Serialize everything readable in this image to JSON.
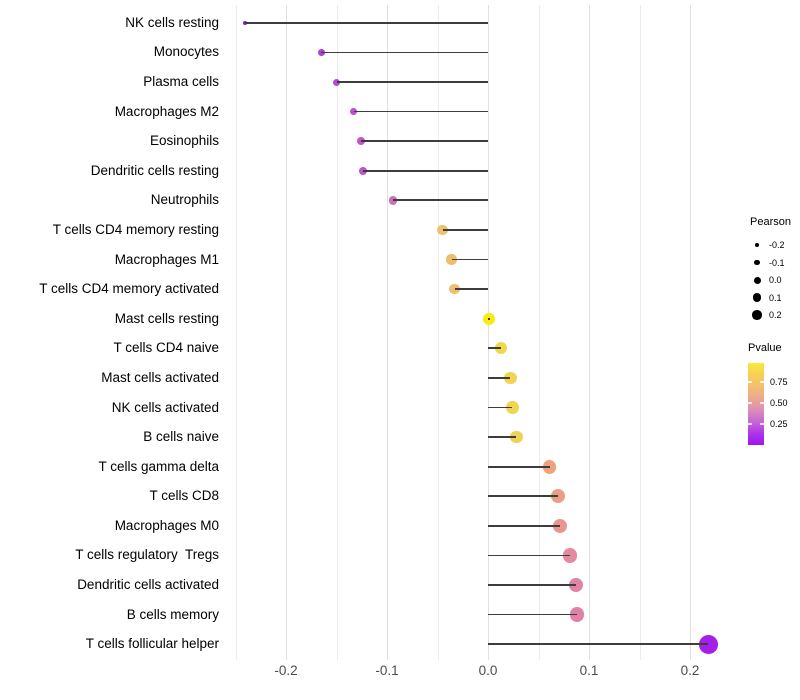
{
  "chart_data": {
    "type": "scatter",
    "variant": "lollipop",
    "title": "",
    "xlabel": "",
    "ylabel": "",
    "xlim": [
      -0.263,
      0.242
    ],
    "x_ticks": [
      -0.2,
      -0.1,
      0.0,
      0.1,
      0.2
    ],
    "x_tick_labels": [
      "-0.2",
      "-0.1",
      "0.0",
      "0.1",
      "0.2"
    ],
    "grid": "vertical-only",
    "minor_grid_values": [
      -0.25,
      -0.15,
      -0.05,
      0.05,
      0.15
    ],
    "legend_position": "right",
    "points": [
      {
        "category": "NK cells resting",
        "pearson": -0.241,
        "color": "#8c12e9"
      },
      {
        "category": "Monocytes",
        "pearson": -0.165,
        "color": "#b242d5"
      },
      {
        "category": "Plasma cells",
        "pearson": -0.15,
        "color": "#b748d2"
      },
      {
        "category": "Macrophages M2",
        "pearson": -0.133,
        "color": "#bc50ce"
      },
      {
        "category": "Eosinophils",
        "pearson": -0.126,
        "color": "#c158ca"
      },
      {
        "category": "Dendritic cells resting",
        "pearson": -0.124,
        "color": "#c056cb"
      },
      {
        "category": "Neutrophils",
        "pearson": -0.094,
        "color": "#cb70bb"
      },
      {
        "category": "T cells CD4 memory resting",
        "pearson": -0.045,
        "color": "#eec06f"
      },
      {
        "category": "Macrophages M1",
        "pearson": -0.036,
        "color": "#edbd6c"
      },
      {
        "category": "T cells CD4 memory activated",
        "pearson": -0.033,
        "color": "#eebf6e"
      },
      {
        "category": "Mast cells resting",
        "pearson": 0.001,
        "color": "#f8ec13"
      },
      {
        "category": "T cells CD4 naive",
        "pearson": 0.013,
        "color": "#f0d74b"
      },
      {
        "category": "Mast cells activated",
        "pearson": 0.022,
        "color": "#f0d54e"
      },
      {
        "category": "NK cells activated",
        "pearson": 0.024,
        "color": "#efd551"
      },
      {
        "category": "B cells naive",
        "pearson": 0.028,
        "color": "#eed254"
      },
      {
        "category": "T cells gamma delta",
        "pearson": 0.061,
        "color": "#eda47d"
      },
      {
        "category": "T cells CD8",
        "pearson": 0.069,
        "color": "#eb9d85"
      },
      {
        "category": "Macrophages M0",
        "pearson": 0.071,
        "color": "#e9968e"
      },
      {
        "category": "T cells regulatory  Tregs",
        "pearson": 0.081,
        "color": "#e48a9e"
      },
      {
        "category": "Dendritic cells activated",
        "pearson": 0.087,
        "color": "#e183a3"
      },
      {
        "category": "B cells memory",
        "pearson": 0.088,
        "color": "#e081a5"
      },
      {
        "category": "T cells follicular helper",
        "pearson": 0.218,
        "color": "#a41fe9"
      }
    ]
  },
  "legend": {
    "pearson": {
      "title": "Pearson",
      "size_labels": [
        "-0.2",
        "-0.1",
        "0.0",
        "0.1",
        "0.2"
      ]
    },
    "pvalue": {
      "title": "Pvalue",
      "tick_labels": [
        "0.75",
        "0.50",
        "0.25"
      ],
      "gradient_stops": [
        [
          "#f9ea3a",
          "0%"
        ],
        [
          "#f6d055",
          "14%"
        ],
        [
          "#f4c06e",
          "28%"
        ],
        [
          "#eaa495",
          "45%"
        ],
        [
          "#dd8bb8",
          "58%"
        ],
        [
          "#c667d6",
          "72%"
        ],
        [
          "#ad35e9",
          "86%"
        ],
        [
          "#9d13f2",
          "100%"
        ]
      ]
    }
  },
  "colors": {
    "background": "#ffffff",
    "stem": "#3d3d3d",
    "grid_major": "#e0e0e0",
    "grid_minor": "#ececec",
    "axis_text": "#4c4c4c",
    "label_text": "#000000"
  }
}
